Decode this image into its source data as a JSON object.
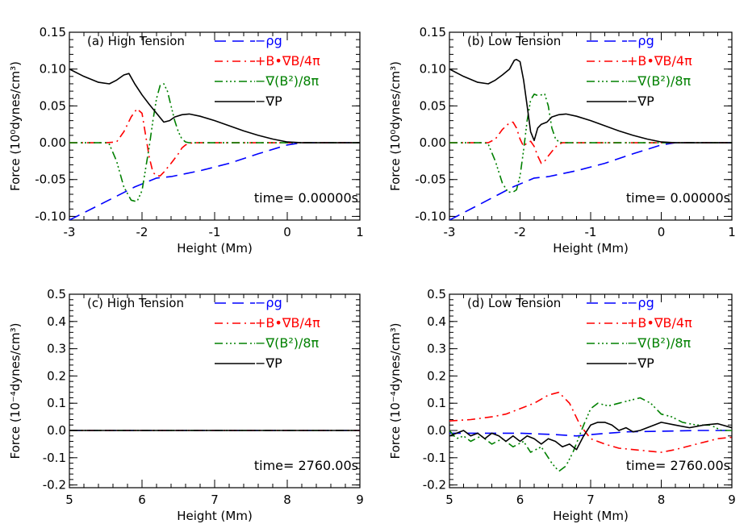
{
  "colors": {
    "rho_g": "#0000ff",
    "tension": "#ff0000",
    "pressure_mag": "#008000",
    "grad_p": "#000000",
    "axes": "#000000"
  },
  "legend_labels": {
    "rho_g": "−ρg",
    "tension": "+B•∇B/4π",
    "pressure_mag": "−∇(B²)/8π",
    "grad_p": "−∇P"
  },
  "chart_data": [
    {
      "type": "line",
      "title": "(a) High Tension",
      "annotation": "time= 0.00000s",
      "xlabel": "Height (Mm)",
      "ylabel": "Force (10⁰dynes/cm³)",
      "xlim": [
        -3,
        1
      ],
      "ylim": [
        -0.105,
        0.15
      ],
      "xticks": [
        "-3",
        "-2",
        "-1",
        "0",
        "1"
      ],
      "yticks": [
        "-0.10",
        "-0.05",
        "0.00",
        "0.05",
        "0.10",
        "0.15"
      ],
      "legend": "top-right",
      "series": [
        {
          "key": "rho_g",
          "name": "−ρg",
          "x": [
            -3,
            -2.5,
            -2.1,
            -1.8,
            -1.6,
            -1.2,
            -0.8,
            -0.4,
            0,
            0.2,
            1
          ],
          "y": [
            -0.105,
            -0.08,
            -0.06,
            -0.048,
            -0.046,
            -0.038,
            -0.028,
            -0.015,
            -0.003,
            0.0,
            0.0
          ]
        },
        {
          "key": "tension",
          "name": "+B•∇B/4π",
          "x": [
            -3,
            -2.5,
            -2.35,
            -2.25,
            -2.15,
            -2.07,
            -2.0,
            -1.95,
            -1.9,
            -1.85,
            -1.8,
            -1.75,
            -1.7,
            -1.6,
            -1.5,
            -1.45,
            -1.4,
            -1.35,
            -1.3,
            1
          ],
          "y": [
            0,
            0,
            0.001,
            0.015,
            0.035,
            0.046,
            0.04,
            0.01,
            -0.02,
            -0.04,
            -0.045,
            -0.045,
            -0.04,
            -0.028,
            -0.015,
            -0.007,
            -0.003,
            -0.001,
            0,
            0
          ]
        },
        {
          "key": "pressure_mag",
          "name": "−∇(B²)/8π",
          "x": [
            -3,
            -2.5,
            -2.45,
            -2.35,
            -2.25,
            -2.15,
            -2.07,
            -2.0,
            -1.95,
            -1.9,
            -1.85,
            -1.8,
            -1.75,
            -1.7,
            -1.65,
            -1.6,
            -1.55,
            -1.5,
            -1.45,
            -1.4,
            -1.35,
            1
          ],
          "y": [
            0,
            0,
            -0.002,
            -0.025,
            -0.06,
            -0.078,
            -0.08,
            -0.065,
            -0.035,
            -0.005,
            0.03,
            0.06,
            0.078,
            0.08,
            0.07,
            0.05,
            0.03,
            0.015,
            0.005,
            0.001,
            0,
            0
          ]
        },
        {
          "key": "grad_p",
          "name": "−∇P",
          "x": [
            -3,
            -2.8,
            -2.6,
            -2.45,
            -2.35,
            -2.25,
            -2.18,
            -2.1,
            -2.0,
            -1.9,
            -1.8,
            -1.7,
            -1.62,
            -1.55,
            -1.45,
            -1.35,
            -1.2,
            -1.0,
            -0.8,
            -0.6,
            -0.4,
            -0.2,
            0.0,
            0.2,
            0.4,
            1
          ],
          "y": [
            0.1,
            0.09,
            0.082,
            0.08,
            0.085,
            0.092,
            0.094,
            0.08,
            0.065,
            0.052,
            0.04,
            0.028,
            0.03,
            0.035,
            0.038,
            0.039,
            0.036,
            0.03,
            0.023,
            0.016,
            0.01,
            0.005,
            0.001,
            0.0,
            0,
            0
          ]
        }
      ]
    },
    {
      "type": "line",
      "title": "(b) Low Tension",
      "annotation": "time= 0.00000s",
      "xlabel": "Height (Mm)",
      "ylabel": "Force (10⁰dynes/cm³)",
      "xlim": [
        -3,
        1
      ],
      "ylim": [
        -0.105,
        0.15
      ],
      "xticks": [
        "-3",
        "-2",
        "-1",
        "0",
        "1"
      ],
      "yticks": [
        "-0.10",
        "-0.05",
        "0.00",
        "0.05",
        "0.10",
        "0.15"
      ],
      "legend": "top-right",
      "series": [
        {
          "key": "rho_g",
          "name": "−ρg",
          "x": [
            -3,
            -2.5,
            -2.1,
            -1.8,
            -1.6,
            -1.2,
            -0.8,
            -0.4,
            0,
            0.2,
            1
          ],
          "y": [
            -0.105,
            -0.08,
            -0.06,
            -0.048,
            -0.046,
            -0.038,
            -0.028,
            -0.015,
            -0.003,
            0.0,
            0.0
          ]
        },
        {
          "key": "tension",
          "name": "+B•∇B/4π",
          "x": [
            -3,
            -2.45,
            -2.35,
            -2.25,
            -2.15,
            -2.1,
            -2.05,
            -2.0,
            -1.95,
            -1.9,
            -1.85,
            -1.8,
            -1.75,
            -1.7,
            -1.65,
            -1.6,
            -1.55,
            -1.5,
            -1.45,
            -1.4,
            1
          ],
          "y": [
            0,
            0,
            0.005,
            0.018,
            0.027,
            0.028,
            0.02,
            0.005,
            -0.005,
            0.0,
            0.002,
            -0.005,
            -0.018,
            -0.028,
            -0.025,
            -0.018,
            -0.012,
            -0.006,
            -0.002,
            0,
            0
          ]
        },
        {
          "key": "pressure_mag",
          "name": "−∇(B²)/8π",
          "x": [
            -3,
            -2.5,
            -2.45,
            -2.35,
            -2.25,
            -2.17,
            -2.1,
            -2.05,
            -2.0,
            -1.95,
            -1.9,
            -1.85,
            -1.8,
            -1.75,
            -1.7,
            -1.65,
            -1.6,
            -1.55,
            -1.5,
            -1.45,
            -1.4,
            1
          ],
          "y": [
            0,
            0,
            -0.002,
            -0.025,
            -0.055,
            -0.067,
            -0.067,
            -0.064,
            -0.045,
            -0.01,
            0.03,
            0.058,
            0.066,
            0.064,
            0.065,
            0.066,
            0.05,
            0.02,
            0.006,
            0.001,
            0,
            0
          ]
        },
        {
          "key": "grad_p",
          "name": "−∇P",
          "x": [
            -3,
            -2.8,
            -2.6,
            -2.45,
            -2.35,
            -2.25,
            -2.15,
            -2.08,
            -2.05,
            -2.0,
            -1.95,
            -1.9,
            -1.85,
            -1.8,
            -1.75,
            -1.7,
            -1.62,
            -1.55,
            -1.45,
            -1.35,
            -1.2,
            -1.0,
            -0.8,
            -0.6,
            -0.4,
            -0.2,
            0.0,
            0.2,
            1
          ],
          "y": [
            0.1,
            0.09,
            0.082,
            0.08,
            0.085,
            0.092,
            0.1,
            0.112,
            0.113,
            0.11,
            0.085,
            0.05,
            0.015,
            0.003,
            0.02,
            0.025,
            0.028,
            0.035,
            0.038,
            0.039,
            0.036,
            0.03,
            0.023,
            0.016,
            0.01,
            0.005,
            0.001,
            0.0,
            0
          ]
        }
      ]
    },
    {
      "type": "line",
      "title": "(c) High Tension",
      "annotation": "time= 2760.00s",
      "xlabel": "Height (Mm)",
      "ylabel": "Force (10⁻⁴dynes/cm³)",
      "xlim": [
        5,
        9
      ],
      "ylim": [
        -0.21,
        0.5
      ],
      "xticks": [
        "5",
        "6",
        "7",
        "8",
        "9"
      ],
      "yticks": [
        "-0.2",
        "-0.1",
        "0.0",
        "0.1",
        "0.2",
        "0.3",
        "0.4",
        "0.5"
      ],
      "legend": "top-right",
      "series": [
        {
          "key": "rho_g",
          "name": "−ρg",
          "x": [
            5,
            9
          ],
          "y": [
            0,
            0
          ]
        },
        {
          "key": "tension",
          "name": "+B•∇B/4π",
          "x": [
            5,
            9
          ],
          "y": [
            0,
            0
          ]
        },
        {
          "key": "pressure_mag",
          "name": "−∇(B²)/8π",
          "x": [
            5,
            9
          ],
          "y": [
            0,
            0
          ]
        },
        {
          "key": "grad_p",
          "name": "−∇P",
          "x": [
            5,
            9
          ],
          "y": [
            0,
            0
          ]
        }
      ]
    },
    {
      "type": "line",
      "title": "(d) Low Tension",
      "annotation": "time= 2760.00s",
      "xlabel": "Height (Mm)",
      "ylabel": "Force (10⁻⁴dynes/cm³)",
      "xlim": [
        5,
        9
      ],
      "ylim": [
        -0.21,
        0.5
      ],
      "xticks": [
        "5",
        "6",
        "7",
        "8",
        "9"
      ],
      "yticks": [
        "-0.2",
        "-0.1",
        "0.0",
        "0.1",
        "0.2",
        "0.3",
        "0.4",
        "0.5"
      ],
      "legend": "top-right",
      "series": [
        {
          "key": "rho_g",
          "name": "−ρg",
          "x": [
            5,
            5.5,
            6,
            6.5,
            6.8,
            7.0,
            7.5,
            8,
            8.5,
            9
          ],
          "y": [
            -0.01,
            -0.01,
            -0.01,
            -0.015,
            -0.02,
            -0.015,
            -0.005,
            -0.003,
            0,
            0
          ]
        },
        {
          "key": "tension",
          "name": "+B•∇B/4π",
          "x": [
            5,
            5.3,
            5.6,
            5.8,
            6.0,
            6.2,
            6.4,
            6.55,
            6.7,
            6.85,
            7.0,
            7.2,
            7.4,
            7.6,
            7.8,
            8.0,
            8.2,
            8.5,
            8.8,
            9
          ],
          "y": [
            0.035,
            0.04,
            0.05,
            0.06,
            0.08,
            0.1,
            0.13,
            0.14,
            0.1,
            0.02,
            -0.03,
            -0.05,
            -0.065,
            -0.07,
            -0.075,
            -0.08,
            -0.07,
            -0.05,
            -0.03,
            -0.025
          ]
        },
        {
          "key": "pressure_mag",
          "name": "−∇(B²)/8π",
          "x": [
            5,
            5.1,
            5.2,
            5.3,
            5.45,
            5.6,
            5.75,
            5.9,
            6.05,
            6.15,
            6.3,
            6.45,
            6.55,
            6.65,
            6.75,
            6.9,
            7.0,
            7.1,
            7.25,
            7.4,
            7.55,
            7.7,
            7.85,
            8.0,
            8.15,
            8.3,
            8.5,
            8.7,
            8.85,
            9
          ],
          "y": [
            0.0,
            -0.03,
            -0.02,
            -0.04,
            -0.02,
            -0.05,
            -0.03,
            -0.06,
            -0.04,
            -0.08,
            -0.06,
            -0.12,
            -0.15,
            -0.13,
            -0.08,
            0.02,
            0.08,
            0.1,
            0.09,
            0.1,
            0.11,
            0.12,
            0.1,
            0.06,
            0.05,
            0.03,
            0.02,
            0.02,
            0.0,
            0.0
          ]
        },
        {
          "key": "grad_p",
          "name": "−∇P",
          "x": [
            5,
            5.1,
            5.2,
            5.3,
            5.4,
            5.5,
            5.6,
            5.7,
            5.8,
            5.9,
            6.0,
            6.1,
            6.2,
            6.3,
            6.4,
            6.5,
            6.6,
            6.7,
            6.8,
            6.9,
            7.0,
            7.1,
            7.2,
            7.3,
            7.4,
            7.5,
            7.6,
            7.7,
            7.8,
            7.9,
            8.0,
            8.2,
            8.4,
            8.6,
            8.8,
            9
          ],
          "y": [
            -0.02,
            -0.01,
            0.0,
            -0.02,
            -0.01,
            -0.03,
            -0.01,
            -0.02,
            -0.04,
            -0.02,
            -0.04,
            -0.02,
            -0.03,
            -0.05,
            -0.03,
            -0.04,
            -0.06,
            -0.05,
            -0.07,
            -0.02,
            0.02,
            0.03,
            0.03,
            0.02,
            0.0,
            0.01,
            -0.005,
            0.0,
            0.01,
            0.02,
            0.03,
            0.02,
            0.01,
            0.02,
            0.025,
            0.01
          ]
        }
      ]
    }
  ]
}
